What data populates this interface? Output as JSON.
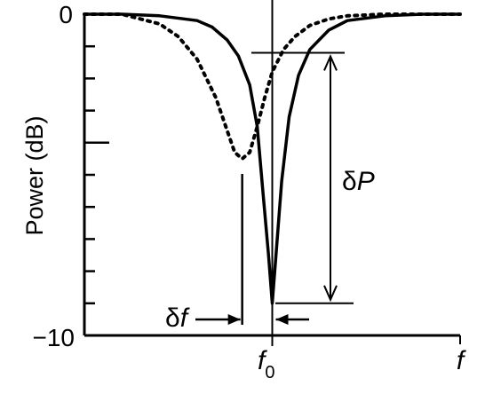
{
  "chart_data": {
    "type": "line",
    "ylabel": "Power (dB)",
    "xlabel": "f",
    "ylim": [
      -10,
      0
    ],
    "y_ticks": [
      0,
      -1,
      -2,
      -3,
      -4,
      -5,
      -6,
      -7,
      -8,
      -9,
      -10
    ],
    "y_tick_labels": {
      "top": "0",
      "bottom": "−10"
    },
    "x_tick_label": "f0",
    "x_tick_main": "f",
    "x_tick_sub": "0",
    "grid": false,
    "series": [
      {
        "style": "solid",
        "x": [
          -5.0,
          -4.0,
          -3.0,
          -2.0,
          -1.6,
          -1.2,
          -0.9,
          -0.6,
          -0.4,
          -0.25,
          -0.1,
          0.0,
          0.1,
          0.25,
          0.45,
          0.7,
          1.0,
          1.5,
          2.0,
          3.0,
          4.0,
          5.0
        ],
        "y": [
          0,
          0,
          -0.05,
          -0.2,
          -0.4,
          -0.8,
          -1.3,
          -2.2,
          -3.5,
          -5.5,
          -7.5,
          -9.0,
          -7.5,
          -5.2,
          -3.2,
          -1.9,
          -1.1,
          -0.5,
          -0.2,
          -0.05,
          0,
          0
        ]
      },
      {
        "style": "dotted",
        "x": [
          -5.0,
          -4.0,
          -3.0,
          -2.5,
          -2.0,
          -1.5,
          -1.0,
          -0.8,
          -0.6,
          -0.4,
          -0.2,
          0.0,
          0.3,
          0.6,
          1.0,
          1.5,
          2.0,
          3.0,
          4.0,
          5.0
        ],
        "y": [
          0,
          0,
          -0.3,
          -0.7,
          -1.4,
          -2.6,
          -4.3,
          -4.5,
          -4.3,
          -3.5,
          -2.6,
          -1.8,
          -1.1,
          -0.7,
          -0.35,
          -0.15,
          -0.05,
          0,
          0,
          0
        ]
      }
    ],
    "annotations": [
      {
        "text": "δP",
        "greek": "δ",
        "symbol": "P"
      },
      {
        "text": "δf",
        "greek": "δ",
        "symbol": "f"
      }
    ]
  }
}
